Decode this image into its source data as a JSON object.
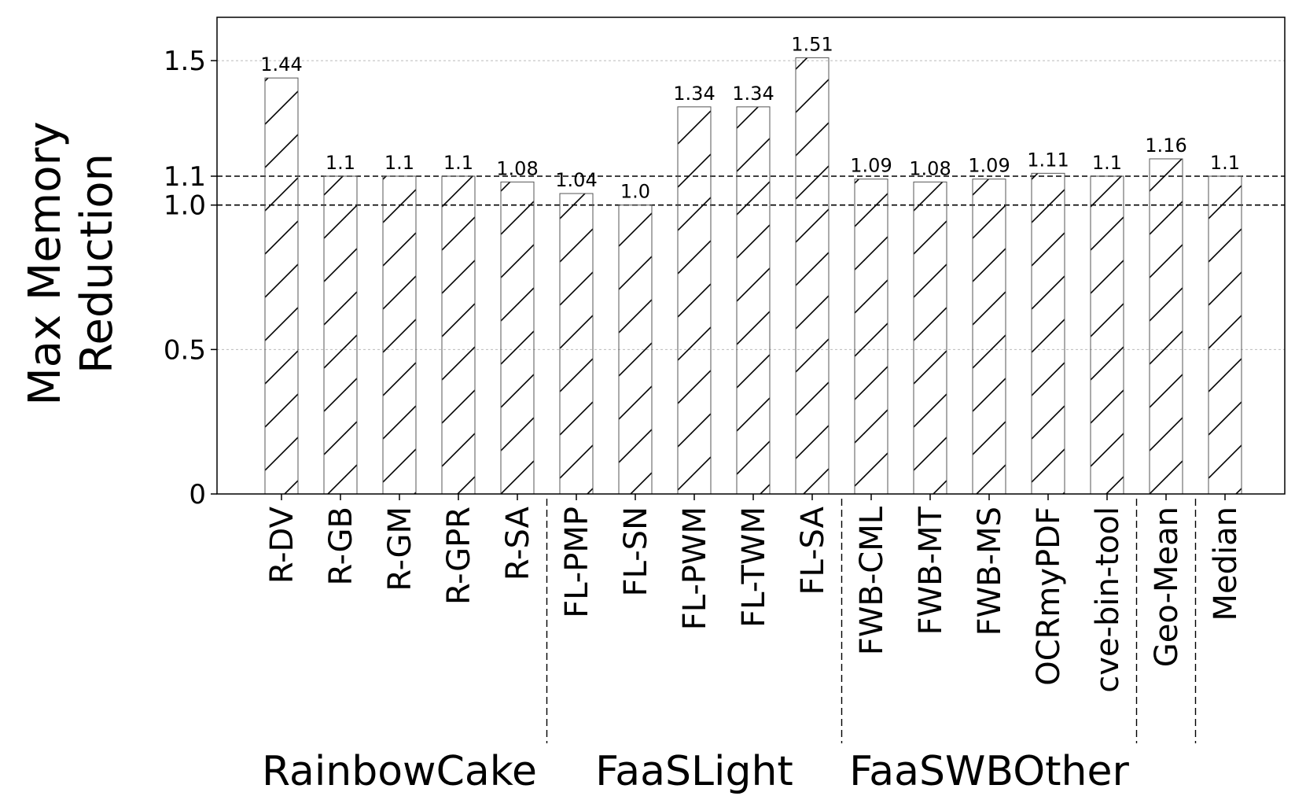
{
  "chart_data": {
    "type": "bar",
    "title": "",
    "xlabel": "",
    "ylabel_lines": [
      "Max Memory",
      "Reduction"
    ],
    "ylim": [
      0,
      1.65
    ],
    "yticks": [
      {
        "value": 0,
        "label": "0"
      },
      {
        "value": 0.5,
        "label": "0.5"
      },
      {
        "value": 1.0,
        "label": "1.0"
      },
      {
        "value": 1.1,
        "label": "1.1"
      },
      {
        "value": 1.5,
        "label": "1.5"
      }
    ],
    "reference_lines": [
      1.0,
      1.1
    ],
    "grid": "horizontal dotted",
    "bar_style": "white fill with diagonal hatch",
    "categories": [
      "R-DV",
      "R-GB",
      "R-GM",
      "R-GPR",
      "R-SA",
      "FL-PMP",
      "FL-SN",
      "FL-PWM",
      "FL-TWM",
      "FL-SA",
      "FWB-CML",
      "FWB-MT",
      "FWB-MS",
      "OCRmyPDF",
      "cve-bin-tool",
      "Geo-Mean",
      "Median"
    ],
    "values": [
      1.44,
      1.1,
      1.1,
      1.1,
      1.08,
      1.04,
      1.0,
      1.34,
      1.34,
      1.51,
      1.09,
      1.08,
      1.09,
      1.11,
      1.1,
      1.16,
      1.1
    ],
    "value_labels": [
      "1.44",
      "1.1",
      "1.1",
      "1.1",
      "1.08",
      "1.04",
      "1.0",
      "1.34",
      "1.34",
      "1.51",
      "1.09",
      "1.08",
      "1.09",
      "1.11",
      "1.1",
      "1.16",
      "1.1"
    ],
    "groups": [
      {
        "label": "RainbowCake",
        "start": 0,
        "end": 4
      },
      {
        "label": "FaaSLight",
        "start": 5,
        "end": 9
      },
      {
        "label": "FaaSWBOther",
        "start": 10,
        "end": 14
      }
    ],
    "group_separators_after": [
      4,
      9,
      14,
      15
    ]
  }
}
